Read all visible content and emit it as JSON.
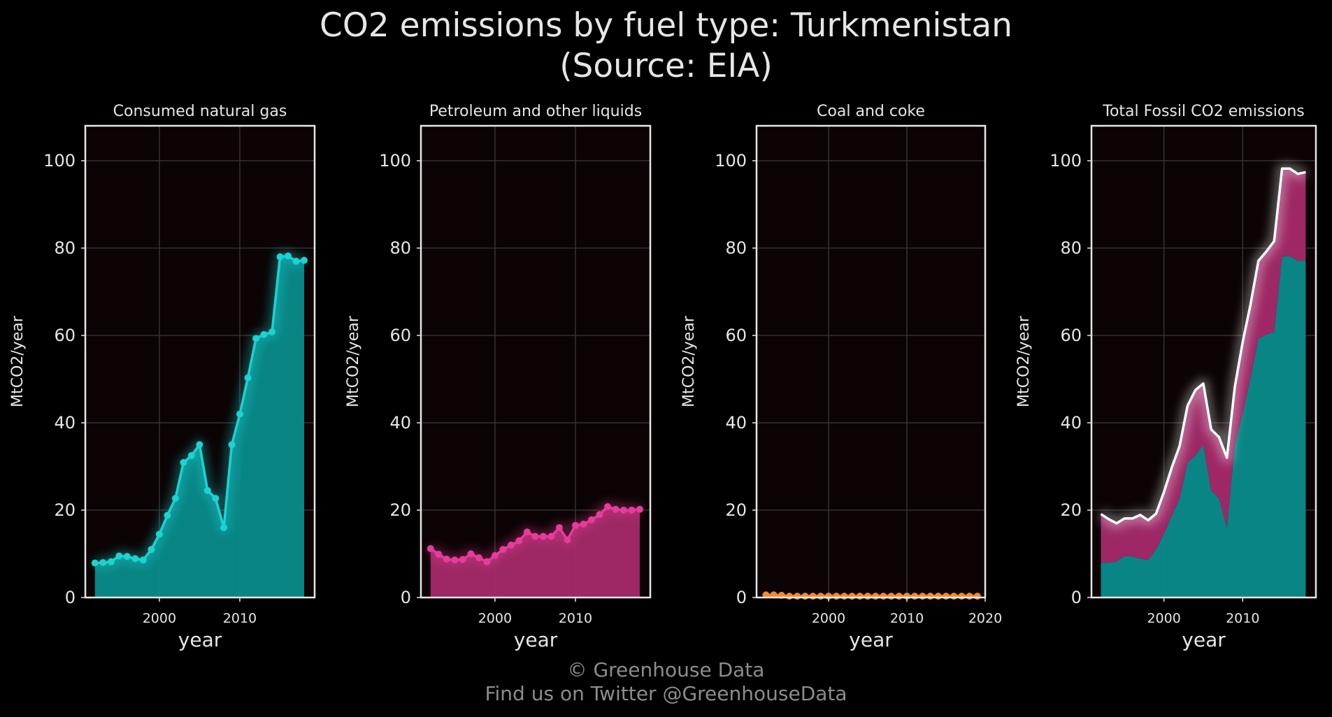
{
  "figure": {
    "title": "CO2 emissions by fuel type: Turkmenistan",
    "subtitle": "(Source: EIA)",
    "credit": "© Greenhouse Data",
    "credit_twitter": "Find us on Twitter @GreenhouseData"
  },
  "colors": {
    "background": "#000000",
    "plot_background": "#0b0304",
    "gas": "#1ad3d3",
    "gas_fill": "#0a8c8c",
    "petroleum": "#e63c9a",
    "petroleum_fill": "#a52a6a",
    "coal": "#f08a30",
    "total_line": "#ffffff",
    "axis_text": "#e6e6e6",
    "grid": "#3a3a3a"
  },
  "chart_data": [
    {
      "type": "area",
      "title": "Consumed natural gas",
      "xlabel": "year",
      "ylabel": "MtCO2/year",
      "xlim": [
        1990.8,
        2019.3
      ],
      "ylim": [
        0,
        108
      ],
      "xticks": [
        "2000",
        "2010"
      ],
      "yticks": [
        "0",
        "20",
        "40",
        "60",
        "80",
        "100"
      ],
      "grid": true,
      "series": [
        {
          "color_key": "gas",
          "x": [
            1992,
            1993,
            1994,
            1995,
            1996,
            1997,
            1998,
            1999,
            2000,
            2001,
            2002,
            2003,
            2004,
            2005,
            2006,
            2007,
            2008,
            2009,
            2010,
            2011,
            2012,
            2013,
            2014,
            2015,
            2016,
            2017,
            2018
          ],
          "values": [
            7.9,
            8.0,
            8.2,
            9.5,
            9.4,
            8.9,
            8.6,
            11.0,
            14.5,
            18.8,
            22.7,
            30.9,
            32.5,
            35.0,
            24.5,
            22.7,
            16.0,
            35.0,
            42.0,
            50.3,
            59.3,
            60.2,
            60.8,
            78.0,
            78.2,
            77.0,
            77.2
          ]
        }
      ]
    },
    {
      "type": "area",
      "title": "Petroleum and other liquids",
      "xlabel": "year",
      "ylabel": "MtCO2/year",
      "xlim": [
        1990.8,
        2019.3
      ],
      "ylim": [
        0,
        108
      ],
      "xticks": [
        "2000",
        "2010"
      ],
      "yticks": [
        "0",
        "20",
        "40",
        "60",
        "80",
        "100"
      ],
      "grid": true,
      "series": [
        {
          "color_key": "petroleum",
          "x": [
            1992,
            1993,
            1994,
            1995,
            1996,
            1997,
            1998,
            1999,
            2000,
            2001,
            2002,
            2003,
            2004,
            2005,
            2006,
            2007,
            2008,
            2009,
            2010,
            2011,
            2012,
            2013,
            2014,
            2015,
            2016,
            2017,
            2018
          ],
          "values": [
            11.2,
            9.9,
            8.8,
            8.6,
            8.7,
            10.0,
            9.1,
            8.2,
            9.6,
            11.0,
            12.0,
            13.0,
            15.0,
            14.0,
            14.0,
            14.0,
            16.0,
            13.2,
            16.5,
            16.8,
            17.8,
            19.0,
            20.8,
            20.2,
            20.0,
            20.0,
            20.2
          ]
        }
      ]
    },
    {
      "type": "area",
      "title": "Coal and coke",
      "xlabel": "year",
      "ylabel": "MtCO2/year",
      "xlim": [
        1990.8,
        2020.0
      ],
      "ylim": [
        0,
        108
      ],
      "xticks": [
        "2000",
        "2010",
        "2020"
      ],
      "yticks": [
        "0",
        "20",
        "40",
        "60",
        "80",
        "100"
      ],
      "grid": true,
      "series": [
        {
          "color_key": "coal",
          "x": [
            1992,
            1993,
            1994,
            1995,
            1996,
            1997,
            1998,
            1999,
            2000,
            2001,
            2002,
            2003,
            2004,
            2005,
            2006,
            2007,
            2008,
            2009,
            2010,
            2011,
            2012,
            2013,
            2014,
            2015,
            2016,
            2017,
            2018,
            2019
          ],
          "values": [
            0.6,
            0.6,
            0.5,
            0.3,
            0.3,
            0.3,
            0.3,
            0.3,
            0.3,
            0.3,
            0.3,
            0.3,
            0.3,
            0.3,
            0.3,
            0.3,
            0.3,
            0.3,
            0.3,
            0.3,
            0.3,
            0.3,
            0.3,
            0.3,
            0.3,
            0.3,
            0.3,
            0.3
          ]
        }
      ]
    },
    {
      "type": "area",
      "title": "Total Fossil CO2 emissions",
      "xlabel": "year",
      "ylabel": "MtCO2/year",
      "xlim": [
        1990.8,
        2019.3
      ],
      "ylim": [
        0,
        108
      ],
      "xticks": [
        "2000",
        "2010"
      ],
      "yticks": [
        "0",
        "20",
        "40",
        "60",
        "80",
        "100"
      ],
      "grid": true,
      "stacked": true,
      "total_line": true,
      "series": [
        {
          "color_key": "gas",
          "x": [
            1992,
            1993,
            1994,
            1995,
            1996,
            1997,
            1998,
            1999,
            2000,
            2001,
            2002,
            2003,
            2004,
            2005,
            2006,
            2007,
            2008,
            2009,
            2010,
            2011,
            2012,
            2013,
            2014,
            2015,
            2016,
            2017,
            2018
          ],
          "values": [
            7.9,
            8.0,
            8.2,
            9.5,
            9.4,
            8.9,
            8.6,
            11.0,
            14.5,
            18.8,
            22.7,
            30.9,
            32.5,
            35.0,
            24.5,
            22.7,
            16.0,
            35.0,
            42.0,
            50.3,
            59.3,
            60.2,
            60.8,
            78.0,
            78.2,
            77.0,
            77.2
          ]
        },
        {
          "color_key": "petroleum",
          "x": [
            1992,
            1993,
            1994,
            1995,
            1996,
            1997,
            1998,
            1999,
            2000,
            2001,
            2002,
            2003,
            2004,
            2005,
            2006,
            2007,
            2008,
            2009,
            2010,
            2011,
            2012,
            2013,
            2014,
            2015,
            2016,
            2017,
            2018
          ],
          "values": [
            11.2,
            9.9,
            8.8,
            8.6,
            8.7,
            10.0,
            9.1,
            8.2,
            9.6,
            11.0,
            12.0,
            13.0,
            15.0,
            14.0,
            14.0,
            14.0,
            16.0,
            13.2,
            16.5,
            16.8,
            17.8,
            19.0,
            20.8,
            20.2,
            20.0,
            20.0,
            20.2
          ]
        }
      ]
    }
  ]
}
